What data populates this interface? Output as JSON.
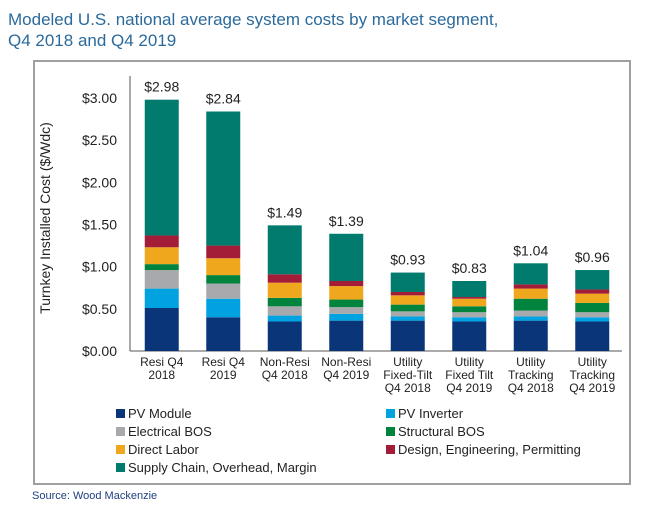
{
  "title_lines": [
    "Modeled U.S. national average system costs by market segment,",
    "Q4 2018 and Q4 2019"
  ],
  "source": "Source: Wood Mackenzie",
  "chart_data": {
    "type": "bar",
    "stacked": true,
    "title": "Modeled U.S. national average system costs by market segment, Q4 2018 and Q4 2019",
    "ylabel": "Turnkey Installed Cost ($/Wdc)",
    "xlabel": "",
    "ylim": [
      0,
      3.0
    ],
    "yticks": [
      0,
      0.5,
      1.0,
      1.5,
      2.0,
      2.5,
      3.0
    ],
    "ytick_labels": [
      "$0.00",
      "$0.50",
      "$1.00",
      "$1.50",
      "$2.00",
      "$2.50",
      "$3.00"
    ],
    "grid": false,
    "legend_position": "bottom",
    "categories": [
      [
        "Resi Q4",
        "2018"
      ],
      [
        "Resi Q4",
        "2019"
      ],
      [
        "Non-Resi",
        "Q4 2018"
      ],
      [
        "Non-Resi",
        "Q4 2019"
      ],
      [
        "Utility",
        "Fixed-Tilt",
        "Q4 2018"
      ],
      [
        "Utility",
        "Fixed Tilt",
        "Q4 2019"
      ],
      [
        "Utility",
        "Tracking",
        "Q4 2018"
      ],
      [
        "Utility",
        "Tracking",
        "Q4 2019"
      ]
    ],
    "totals": [
      2.98,
      2.84,
      1.49,
      1.39,
      0.93,
      0.83,
      1.04,
      0.96
    ],
    "total_labels": [
      "$2.98",
      "$2.84",
      "$1.49",
      "$1.39",
      "$0.93",
      "$0.83",
      "$1.04",
      "$0.96"
    ],
    "series": [
      {
        "name": "PV Module",
        "color": "#0b3579",
        "values": [
          0.51,
          0.4,
          0.35,
          0.36,
          0.36,
          0.35,
          0.36,
          0.35
        ]
      },
      {
        "name": "PV Inverter",
        "color": "#00a3e0",
        "values": [
          0.23,
          0.22,
          0.07,
          0.08,
          0.05,
          0.05,
          0.05,
          0.05
        ]
      },
      {
        "name": "Electrical BOS",
        "color": "#a7a9ac",
        "values": [
          0.22,
          0.18,
          0.11,
          0.08,
          0.06,
          0.06,
          0.07,
          0.06
        ]
      },
      {
        "name": "Structural BOS",
        "color": "#00843d",
        "values": [
          0.07,
          0.1,
          0.1,
          0.09,
          0.08,
          0.07,
          0.14,
          0.11
        ]
      },
      {
        "name": "Direct Labor",
        "color": "#efa81d",
        "values": [
          0.2,
          0.2,
          0.18,
          0.16,
          0.11,
          0.09,
          0.12,
          0.11
        ]
      },
      {
        "name": "Design, Engineering, Permitting",
        "color": "#a31d38",
        "values": [
          0.14,
          0.15,
          0.1,
          0.06,
          0.04,
          0.02,
          0.05,
          0.05
        ]
      },
      {
        "name": "Supply Chain, Overhead, Margin",
        "color": "#007b6e",
        "values": [
          1.61,
          1.59,
          0.58,
          0.56,
          0.23,
          0.19,
          0.25,
          0.23
        ]
      }
    ]
  }
}
